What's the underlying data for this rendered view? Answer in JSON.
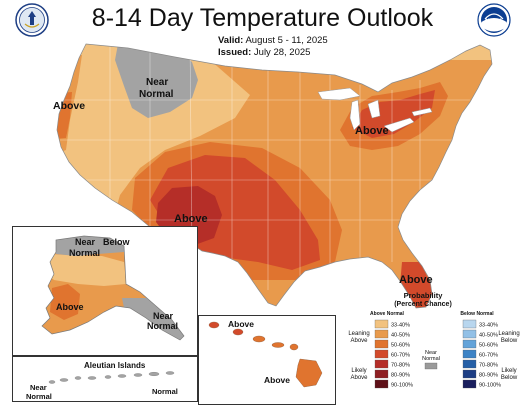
{
  "title": "8-14 Day Temperature Outlook",
  "valid_label": "Valid:",
  "valid_value": "August 5 - 11, 2025",
  "issued_label": "Issued:",
  "issued_value": "July 28, 2025",
  "logos": {
    "left": "doc-seal-icon",
    "right": "noaa-logo-icon",
    "noaa_text": "NOAA"
  },
  "labels": {
    "above_west": "Above",
    "near_normal_nw_1": "Near",
    "near_normal_nw_2": "Normal",
    "above_southwest": "Above",
    "above_great_lakes": "Above",
    "above_florida": "Above",
    "alaska_near_1": "Near",
    "alaska_near_2": "Normal",
    "alaska_below": "Below",
    "alaska_above": "Above",
    "alaska_se_near_1": "Near",
    "alaska_se_near_2": "Normal",
    "aleutian_title": "Aleutian Islands",
    "aleutian_near_1": "Near",
    "aleutian_near_2": "Normal",
    "aleutian_normal_right": "Normal",
    "hawaii_above_1": "Above",
    "hawaii_above_2": "Above"
  },
  "legend": {
    "title_1": "Probability",
    "title_2": "(Percent Chance)",
    "above_header": "Above Normal",
    "below_header": "Below Normal",
    "leaning_above_1": "Leaning",
    "leaning_above_2": "Above",
    "likely_above_1": "Likely",
    "likely_above_2": "Above",
    "near_normal_1": "Near",
    "near_normal_2": "Normal",
    "leaning_below_1": "Leaning",
    "leaning_below_2": "Below",
    "likely_below_1": "Likely",
    "likely_below_2": "Below",
    "above_bins": [
      {
        "label": "33-40%",
        "color": "#f2c27f"
      },
      {
        "label": "40-50%",
        "color": "#e89a4c"
      },
      {
        "label": "50-60%",
        "color": "#e0742f"
      },
      {
        "label": "60-70%",
        "color": "#d24a2b"
      },
      {
        "label": "70-80%",
        "color": "#b52e28"
      },
      {
        "label": "80-90%",
        "color": "#8e1f22"
      },
      {
        "label": "90-100%",
        "color": "#5e1018"
      }
    ],
    "below_bins": [
      {
        "label": "33-40%",
        "color": "#b8d6ee"
      },
      {
        "label": "40-50%",
        "color": "#92c0e6"
      },
      {
        "label": "50-60%",
        "color": "#63a3d9"
      },
      {
        "label": "60-70%",
        "color": "#3d83c5"
      },
      {
        "label": "70-80%",
        "color": "#255fa6"
      },
      {
        "label": "80-90%",
        "color": "#1d3e84"
      },
      {
        "label": "90-100%",
        "color": "#1a1f5e"
      }
    ],
    "near_color": "#9a9a9a"
  },
  "colors": {
    "cat_33_40": "#f2c27f",
    "cat_40_50": "#e89a4c",
    "cat_50_60": "#e0742f",
    "cat_60_70": "#d24a2b",
    "cat_70_80": "#b52e28",
    "near_normal": "#a3a3a3"
  }
}
